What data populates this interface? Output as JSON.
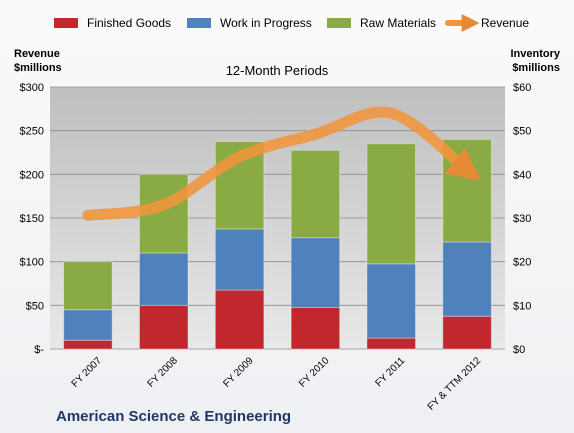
{
  "chart_data": {
    "type": "bar",
    "subtitle": "12-Month Periods",
    "footer_title": "American Science & Engineering",
    "categories": [
      "FY 2007",
      "FY 2008",
      "FY 2009",
      "FY 2010",
      "FY 2011",
      "FY & TTM 2012"
    ],
    "left_axis": {
      "label_line1": "Revenue",
      "label_line2": "$millions",
      "ylim": [
        0,
        300
      ],
      "ticks": [
        "$-",
        "$50",
        "$100",
        "$150",
        "$200",
        "$250",
        "$300"
      ]
    },
    "right_axis": {
      "label_line1": "Inventory",
      "label_line2": "$millions",
      "ylim": [
        0,
        60
      ],
      "ticks": [
        "$0",
        "$10",
        "$20",
        "$30",
        "$40",
        "$50",
        "$60"
      ]
    },
    "series": [
      {
        "name": "Finished Goods",
        "kind": "bar",
        "axis": "right",
        "color": "#c0282d",
        "values": [
          2,
          10,
          13.5,
          9.5,
          2.5,
          7.5
        ]
      },
      {
        "name": "Work in Progress",
        "kind": "bar",
        "axis": "right",
        "color": "#4f81bd",
        "values": [
          7,
          12,
          14,
          16,
          17,
          17
        ]
      },
      {
        "name": "Raw Materials",
        "kind": "bar",
        "axis": "right",
        "color": "#8aaa44",
        "values": [
          11,
          18,
          20,
          20,
          27.5,
          23.5
        ]
      },
      {
        "name": "Revenue",
        "kind": "line",
        "axis": "left",
        "color": "#f0953a",
        "values": [
          153,
          165,
          220,
          246,
          270,
          205
        ]
      }
    ],
    "legend_position": "top",
    "grid": true
  }
}
